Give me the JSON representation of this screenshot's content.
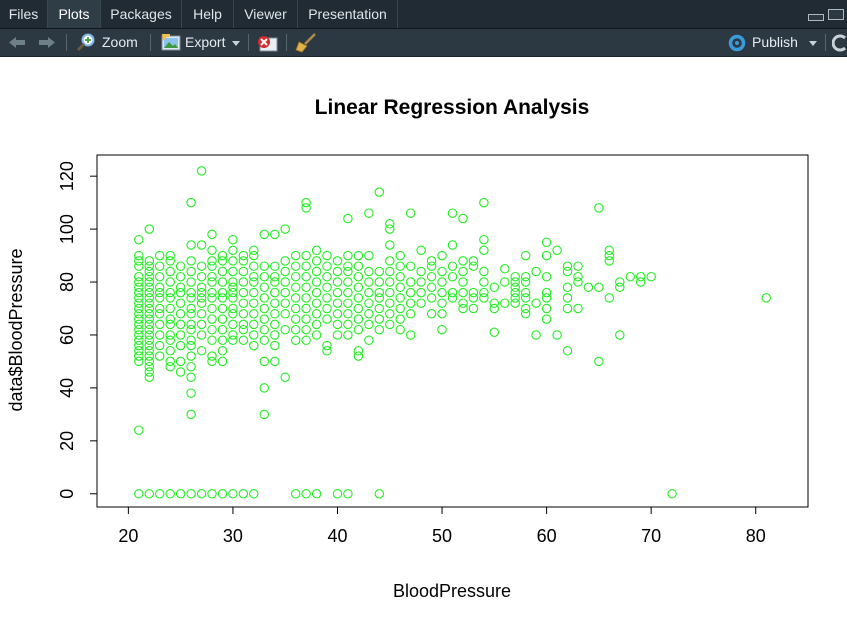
{
  "tabs": [
    {
      "label": "Files",
      "active": false
    },
    {
      "label": "Plots",
      "active": true
    },
    {
      "label": "Packages",
      "active": false
    },
    {
      "label": "Help",
      "active": false
    },
    {
      "label": "Viewer",
      "active": false
    },
    {
      "label": "Presentation",
      "active": false
    }
  ],
  "toolbar": {
    "zoom_label": "Zoom",
    "export_label": "Export",
    "publish_label": "Publish"
  },
  "colors": {
    "points": "#22ee22",
    "publish_icon": "#3b9ad9"
  },
  "chart_data": {
    "type": "scatter",
    "title": "Linear Regression Analysis",
    "xlabel": "BloodPressure",
    "ylabel": "data$BloodPressure",
    "xlim": [
      17,
      85
    ],
    "ylim": [
      -5,
      128
    ],
    "xticks": [
      20,
      30,
      40,
      50,
      60,
      70,
      80
    ],
    "yticks": [
      0,
      20,
      40,
      60,
      80,
      100,
      120
    ],
    "marker": "open-circle",
    "grid": false,
    "points": [
      [
        21,
        96
      ],
      [
        21,
        90
      ],
      [
        21,
        88
      ],
      [
        21,
        86
      ],
      [
        21,
        82
      ],
      [
        21,
        80
      ],
      [
        21,
        78
      ],
      [
        21,
        76
      ],
      [
        21,
        74
      ],
      [
        21,
        72
      ],
      [
        21,
        70
      ],
      [
        21,
        68
      ],
      [
        21,
        66
      ],
      [
        21,
        64
      ],
      [
        21,
        62
      ],
      [
        21,
        60
      ],
      [
        21,
        58
      ],
      [
        21,
        56
      ],
      [
        21,
        54
      ],
      [
        21,
        52
      ],
      [
        21,
        50
      ],
      [
        21,
        24
      ],
      [
        21,
        0
      ],
      [
        22,
        100
      ],
      [
        22,
        88
      ],
      [
        22,
        86
      ],
      [
        22,
        84
      ],
      [
        22,
        82
      ],
      [
        22,
        80
      ],
      [
        22,
        78
      ],
      [
        22,
        76
      ],
      [
        22,
        74
      ],
      [
        22,
        72
      ],
      [
        22,
        70
      ],
      [
        22,
        68
      ],
      [
        22,
        66
      ],
      [
        22,
        64
      ],
      [
        22,
        62
      ],
      [
        22,
        60
      ],
      [
        22,
        58
      ],
      [
        22,
        56
      ],
      [
        22,
        54
      ],
      [
        22,
        52
      ],
      [
        22,
        50
      ],
      [
        22,
        48
      ],
      [
        22,
        46
      ],
      [
        22,
        44
      ],
      [
        22,
        0
      ],
      [
        23,
        90
      ],
      [
        23,
        86
      ],
      [
        23,
        82
      ],
      [
        23,
        78
      ],
      [
        23,
        76
      ],
      [
        23,
        74
      ],
      [
        23,
        70
      ],
      [
        23,
        68
      ],
      [
        23,
        64
      ],
      [
        23,
        60
      ],
      [
        23,
        56
      ],
      [
        23,
        52
      ],
      [
        23,
        0
      ],
      [
        24,
        90
      ],
      [
        24,
        88
      ],
      [
        24,
        84
      ],
      [
        24,
        80
      ],
      [
        24,
        76
      ],
      [
        24,
        74
      ],
      [
        24,
        70
      ],
      [
        24,
        66
      ],
      [
        24,
        64
      ],
      [
        24,
        60
      ],
      [
        24,
        58
      ],
      [
        24,
        54
      ],
      [
        24,
        50
      ],
      [
        24,
        48
      ],
      [
        24,
        0
      ],
      [
        25,
        86
      ],
      [
        25,
        82
      ],
      [
        25,
        78
      ],
      [
        25,
        76
      ],
      [
        25,
        72
      ],
      [
        25,
        68
      ],
      [
        25,
        64
      ],
      [
        25,
        60
      ],
      [
        25,
        56
      ],
      [
        25,
        50
      ],
      [
        25,
        46
      ],
      [
        25,
        0
      ],
      [
        26,
        110
      ],
      [
        26,
        94
      ],
      [
        26,
        88
      ],
      [
        26,
        84
      ],
      [
        26,
        80
      ],
      [
        26,
        76
      ],
      [
        26,
        74
      ],
      [
        26,
        70
      ],
      [
        26,
        68
      ],
      [
        26,
        64
      ],
      [
        26,
        62
      ],
      [
        26,
        58
      ],
      [
        26,
        56
      ],
      [
        26,
        52
      ],
      [
        26,
        48
      ],
      [
        26,
        44
      ],
      [
        26,
        38
      ],
      [
        26,
        30
      ],
      [
        26,
        0
      ],
      [
        27,
        122
      ],
      [
        27,
        94
      ],
      [
        27,
        86
      ],
      [
        27,
        82
      ],
      [
        27,
        78
      ],
      [
        27,
        76
      ],
      [
        27,
        74
      ],
      [
        27,
        72
      ],
      [
        27,
        68
      ],
      [
        27,
        64
      ],
      [
        27,
        60
      ],
      [
        27,
        54
      ],
      [
        27,
        0
      ],
      [
        28,
        98
      ],
      [
        28,
        92
      ],
      [
        28,
        88
      ],
      [
        28,
        86
      ],
      [
        28,
        82
      ],
      [
        28,
        80
      ],
      [
        28,
        76
      ],
      [
        28,
        74
      ],
      [
        28,
        70
      ],
      [
        28,
        66
      ],
      [
        28,
        62
      ],
      [
        28,
        58
      ],
      [
        28,
        52
      ],
      [
        28,
        50
      ],
      [
        28,
        0
      ],
      [
        29,
        90
      ],
      [
        29,
        88
      ],
      [
        29,
        84
      ],
      [
        29,
        80
      ],
      [
        29,
        76
      ],
      [
        29,
        74
      ],
      [
        29,
        70
      ],
      [
        29,
        66
      ],
      [
        29,
        62
      ],
      [
        29,
        58
      ],
      [
        29,
        54
      ],
      [
        29,
        50
      ],
      [
        29,
        0
      ],
      [
        30,
        96
      ],
      [
        30,
        92
      ],
      [
        30,
        88
      ],
      [
        30,
        84
      ],
      [
        30,
        80
      ],
      [
        30,
        78
      ],
      [
        30,
        76
      ],
      [
        30,
        74
      ],
      [
        30,
        70
      ],
      [
        30,
        68
      ],
      [
        30,
        64
      ],
      [
        30,
        60
      ],
      [
        30,
        58
      ],
      [
        30,
        0
      ],
      [
        31,
        90
      ],
      [
        31,
        88
      ],
      [
        31,
        84
      ],
      [
        31,
        80
      ],
      [
        31,
        76
      ],
      [
        31,
        72
      ],
      [
        31,
        68
      ],
      [
        31,
        64
      ],
      [
        31,
        62
      ],
      [
        31,
        58
      ],
      [
        31,
        0
      ],
      [
        32,
        92
      ],
      [
        32,
        90
      ],
      [
        32,
        86
      ],
      [
        32,
        82
      ],
      [
        32,
        80
      ],
      [
        32,
        76
      ],
      [
        32,
        72
      ],
      [
        32,
        68
      ],
      [
        32,
        64
      ],
      [
        32,
        60
      ],
      [
        32,
        56
      ],
      [
        32,
        0
      ],
      [
        33,
        98
      ],
      [
        33,
        86
      ],
      [
        33,
        82
      ],
      [
        33,
        78
      ],
      [
        33,
        74
      ],
      [
        33,
        70
      ],
      [
        33,
        66
      ],
      [
        33,
        62
      ],
      [
        33,
        58
      ],
      [
        33,
        50
      ],
      [
        33,
        40
      ],
      [
        33,
        30
      ],
      [
        34,
        98
      ],
      [
        34,
        86
      ],
      [
        34,
        82
      ],
      [
        34,
        80
      ],
      [
        34,
        76
      ],
      [
        34,
        72
      ],
      [
        34,
        68
      ],
      [
        34,
        64
      ],
      [
        34,
        60
      ],
      [
        34,
        56
      ],
      [
        34,
        50
      ],
      [
        35,
        100
      ],
      [
        35,
        88
      ],
      [
        35,
        84
      ],
      [
        35,
        80
      ],
      [
        35,
        76
      ],
      [
        35,
        72
      ],
      [
        35,
        68
      ],
      [
        35,
        62
      ],
      [
        35,
        44
      ],
      [
        36,
        90
      ],
      [
        36,
        86
      ],
      [
        36,
        82
      ],
      [
        36,
        78
      ],
      [
        36,
        74
      ],
      [
        36,
        70
      ],
      [
        36,
        66
      ],
      [
        36,
        62
      ],
      [
        36,
        58
      ],
      [
        36,
        0
      ],
      [
        37,
        110
      ],
      [
        37,
        108
      ],
      [
        37,
        90
      ],
      [
        37,
        86
      ],
      [
        37,
        82
      ],
      [
        37,
        78
      ],
      [
        37,
        74
      ],
      [
        37,
        70
      ],
      [
        37,
        66
      ],
      [
        37,
        62
      ],
      [
        37,
        58
      ],
      [
        37,
        0
      ],
      [
        38,
        92
      ],
      [
        38,
        88
      ],
      [
        38,
        84
      ],
      [
        38,
        80
      ],
      [
        38,
        76
      ],
      [
        38,
        72
      ],
      [
        38,
        68
      ],
      [
        38,
        64
      ],
      [
        38,
        60
      ],
      [
        38,
        0
      ],
      [
        39,
        90
      ],
      [
        39,
        86
      ],
      [
        39,
        82
      ],
      [
        39,
        78
      ],
      [
        39,
        74
      ],
      [
        39,
        70
      ],
      [
        39,
        66
      ],
      [
        39,
        56
      ],
      [
        39,
        54
      ],
      [
        40,
        88
      ],
      [
        40,
        84
      ],
      [
        40,
        80
      ],
      [
        40,
        76
      ],
      [
        40,
        72
      ],
      [
        40,
        68
      ],
      [
        40,
        64
      ],
      [
        40,
        60
      ],
      [
        40,
        0
      ],
      [
        41,
        104
      ],
      [
        41,
        90
      ],
      [
        41,
        86
      ],
      [
        41,
        84
      ],
      [
        41,
        80
      ],
      [
        41,
        76
      ],
      [
        41,
        72
      ],
      [
        41,
        68
      ],
      [
        41,
        64
      ],
      [
        41,
        60
      ],
      [
        41,
        0
      ],
      [
        42,
        90
      ],
      [
        42,
        86
      ],
      [
        42,
        82
      ],
      [
        42,
        78
      ],
      [
        42,
        74
      ],
      [
        42,
        70
      ],
      [
        42,
        66
      ],
      [
        42,
        62
      ],
      [
        42,
        54
      ],
      [
        42,
        52
      ],
      [
        43,
        106
      ],
      [
        43,
        90
      ],
      [
        43,
        84
      ],
      [
        43,
        80
      ],
      [
        43,
        76
      ],
      [
        43,
        72
      ],
      [
        43,
        68
      ],
      [
        43,
        64
      ],
      [
        43,
        58
      ],
      [
        44,
        114
      ],
      [
        44,
        84
      ],
      [
        44,
        80
      ],
      [
        44,
        76
      ],
      [
        44,
        74
      ],
      [
        44,
        70
      ],
      [
        44,
        66
      ],
      [
        44,
        62
      ],
      [
        44,
        0
      ],
      [
        45,
        102
      ],
      [
        45,
        100
      ],
      [
        45,
        94
      ],
      [
        45,
        88
      ],
      [
        45,
        84
      ],
      [
        45,
        80
      ],
      [
        45,
        76
      ],
      [
        45,
        72
      ],
      [
        45,
        68
      ],
      [
        45,
        64
      ],
      [
        46,
        90
      ],
      [
        46,
        86
      ],
      [
        46,
        82
      ],
      [
        46,
        78
      ],
      [
        46,
        74
      ],
      [
        46,
        70
      ],
      [
        46,
        66
      ],
      [
        46,
        62
      ],
      [
        47,
        106
      ],
      [
        47,
        86
      ],
      [
        47,
        80
      ],
      [
        47,
        76
      ],
      [
        47,
        72
      ],
      [
        47,
        68
      ],
      [
        47,
        60
      ],
      [
        48,
        92
      ],
      [
        48,
        84
      ],
      [
        48,
        80
      ],
      [
        48,
        76
      ],
      [
        48,
        72
      ],
      [
        49,
        88
      ],
      [
        49,
        86
      ],
      [
        49,
        82
      ],
      [
        49,
        78
      ],
      [
        49,
        74
      ],
      [
        49,
        68
      ],
      [
        50,
        90
      ],
      [
        50,
        84
      ],
      [
        50,
        80
      ],
      [
        50,
        76
      ],
      [
        50,
        72
      ],
      [
        50,
        68
      ],
      [
        50,
        62
      ],
      [
        51,
        106
      ],
      [
        51,
        94
      ],
      [
        51,
        86
      ],
      [
        51,
        82
      ],
      [
        51,
        76
      ],
      [
        51,
        74
      ],
      [
        52,
        104
      ],
      [
        52,
        88
      ],
      [
        52,
        84
      ],
      [
        52,
        80
      ],
      [
        52,
        76
      ],
      [
        52,
        72
      ],
      [
        52,
        70
      ],
      [
        53,
        88
      ],
      [
        53,
        86
      ],
      [
        53,
        76
      ],
      [
        53,
        74
      ],
      [
        53,
        70
      ],
      [
        54,
        110
      ],
      [
        54,
        96
      ],
      [
        54,
        92
      ],
      [
        54,
        84
      ],
      [
        54,
        80
      ],
      [
        54,
        76
      ],
      [
        54,
        74
      ],
      [
        55,
        78
      ],
      [
        55,
        72
      ],
      [
        55,
        70
      ],
      [
        55,
        61
      ],
      [
        56,
        85
      ],
      [
        56,
        80
      ],
      [
        56,
        72
      ],
      [
        57,
        82
      ],
      [
        57,
        80
      ],
      [
        57,
        78
      ],
      [
        57,
        76
      ],
      [
        57,
        74
      ],
      [
        57,
        72
      ],
      [
        58,
        90
      ],
      [
        58,
        82
      ],
      [
        58,
        80
      ],
      [
        58,
        76
      ],
      [
        58,
        74
      ],
      [
        58,
        70
      ],
      [
        58,
        68
      ],
      [
        59,
        84
      ],
      [
        59,
        72
      ],
      [
        59,
        60
      ],
      [
        60,
        95
      ],
      [
        60,
        90
      ],
      [
        60,
        82
      ],
      [
        60,
        76
      ],
      [
        60,
        74
      ],
      [
        60,
        70
      ],
      [
        60,
        66
      ],
      [
        61,
        92
      ],
      [
        61,
        60
      ],
      [
        62,
        86
      ],
      [
        62,
        84
      ],
      [
        62,
        78
      ],
      [
        62,
        74
      ],
      [
        62,
        70
      ],
      [
        62,
        54
      ],
      [
        63,
        86
      ],
      [
        63,
        82
      ],
      [
        63,
        80
      ],
      [
        63,
        70
      ],
      [
        64,
        78
      ],
      [
        65,
        108
      ],
      [
        65,
        78
      ],
      [
        65,
        50
      ],
      [
        66,
        92
      ],
      [
        66,
        90
      ],
      [
        66,
        88
      ],
      [
        66,
        74
      ],
      [
        67,
        80
      ],
      [
        67,
        78
      ],
      [
        67,
        60
      ],
      [
        68,
        82
      ],
      [
        69,
        82
      ],
      [
        69,
        80
      ],
      [
        70,
        82
      ],
      [
        72,
        0
      ],
      [
        81,
        74
      ]
    ]
  }
}
